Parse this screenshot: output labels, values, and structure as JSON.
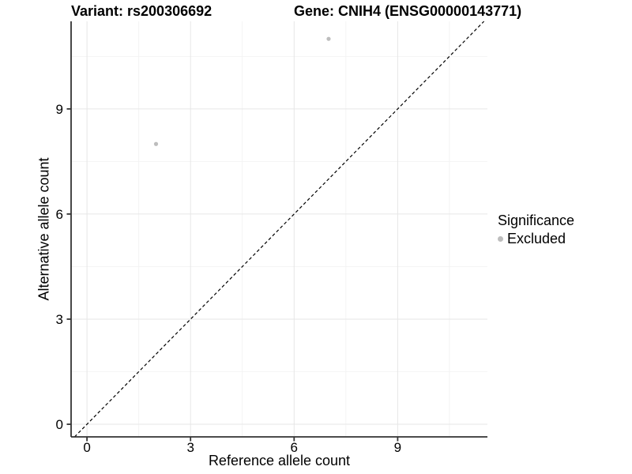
{
  "titles": {
    "variant": "Variant: rs200306692",
    "gene": "Gene: CNIH4 (ENSG00000143771)"
  },
  "chart_data": {
    "type": "scatter",
    "title_left": "Variant: rs200306692",
    "title_right": "Gene: CNIH4 (ENSG00000143771)",
    "xlabel": "Reference allele count",
    "ylabel": "Alternative allele count",
    "points": [
      {
        "x": 2,
        "y": 8,
        "significance": "Excluded"
      },
      {
        "x": 7,
        "y": 11,
        "significance": "Excluded"
      }
    ],
    "identity_line": {
      "slope": 1,
      "intercept": 0,
      "style": "dashed"
    },
    "xticks": [
      0,
      3,
      6,
      9
    ],
    "yticks": [
      0,
      3,
      6,
      9
    ],
    "minor_xticks": [
      1.5,
      4.5,
      7.5,
      10.5
    ],
    "minor_yticks": [
      1.5,
      4.5,
      7.5,
      10.5
    ],
    "xlim": [
      -0.46,
      11.6
    ],
    "ylim": [
      -0.36,
      11.5
    ],
    "grid": true,
    "legend": {
      "position": "right",
      "title": "Significance",
      "entries": [
        {
          "label": "Excluded",
          "color": "#bdbdbd"
        }
      ]
    },
    "colors": {
      "point": "#bdbdbd",
      "axis_line": "#333333",
      "tick": "#333333",
      "grid_major": "#e6e6e6",
      "grid_minor": "#f2f2f2",
      "identity_line": "#000000",
      "text": "#000000"
    }
  }
}
